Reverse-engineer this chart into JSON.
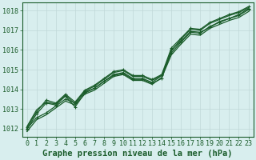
{
  "bg_color": "#d8eeee",
  "grid_color": "#c0d8d8",
  "line_color": "#1a5c2a",
  "xlabel": "Graphe pression niveau de la mer (hPa)",
  "xlabel_color": "#1a5c2a",
  "ylim": [
    1011.6,
    1018.4
  ],
  "xlim": [
    -0.5,
    23.5
  ],
  "yticks": [
    1012,
    1013,
    1014,
    1015,
    1016,
    1017,
    1018
  ],
  "xticks": [
    0,
    1,
    2,
    3,
    4,
    5,
    6,
    7,
    8,
    9,
    10,
    11,
    12,
    13,
    14,
    15,
    16,
    17,
    18,
    19,
    20,
    21,
    22,
    23
  ],
  "lines": [
    {
      "y": [
        1012.0,
        1012.55,
        1012.8,
        1013.15,
        1013.5,
        1013.3,
        1013.85,
        1014.05,
        1014.4,
        1014.75,
        1014.85,
        1014.55,
        1014.55,
        1014.35,
        1014.7,
        1015.85,
        1016.4,
        1016.9,
        1016.85,
        1017.2,
        1017.4,
        1017.6,
        1017.75,
        1018.05
      ],
      "marker": true,
      "lw": 0.9
    },
    {
      "y": [
        1011.85,
        1012.45,
        1012.7,
        1013.05,
        1013.4,
        1013.2,
        1013.75,
        1013.95,
        1014.3,
        1014.65,
        1014.75,
        1014.45,
        1014.45,
        1014.25,
        1014.6,
        1015.75,
        1016.3,
        1016.8,
        1016.75,
        1017.1,
        1017.3,
        1017.5,
        1017.65,
        1017.95
      ],
      "marker": false,
      "lw": 0.9
    },
    {
      "y": [
        1011.95,
        1012.75,
        1013.3,
        1013.2,
        1013.65,
        1013.1,
        1013.8,
        1014.05,
        1014.4,
        1014.7,
        1014.8,
        1014.5,
        1014.5,
        1014.3,
        1014.55,
        1016.0,
        1016.45,
        1016.95,
        1016.9,
        1017.15,
        1017.45,
        1017.6,
        1017.8,
        1018.1
      ],
      "marker": true,
      "lw": 0.9
    },
    {
      "y": [
        1012.1,
        1012.95,
        1013.35,
        1013.25,
        1013.7,
        1013.25,
        1013.9,
        1014.15,
        1014.5,
        1014.85,
        1014.95,
        1014.65,
        1014.65,
        1014.45,
        1014.7,
        1015.95,
        1016.55,
        1017.05,
        1017.0,
        1017.35,
        1017.55,
        1017.75,
        1017.9,
        1018.15
      ],
      "marker": false,
      "lw": 0.9
    },
    {
      "y": [
        1012.05,
        1012.85,
        1013.45,
        1013.3,
        1013.75,
        1013.35,
        1013.95,
        1014.2,
        1014.55,
        1014.9,
        1015.0,
        1014.7,
        1014.7,
        1014.5,
        1014.75,
        1016.1,
        1016.6,
        1017.1,
        1017.05,
        1017.4,
        1017.6,
        1017.8,
        1017.95,
        1018.2
      ],
      "marker": true,
      "lw": 0.9
    }
  ],
  "tick_fontsize": 6,
  "xlabel_fontsize": 7.5
}
